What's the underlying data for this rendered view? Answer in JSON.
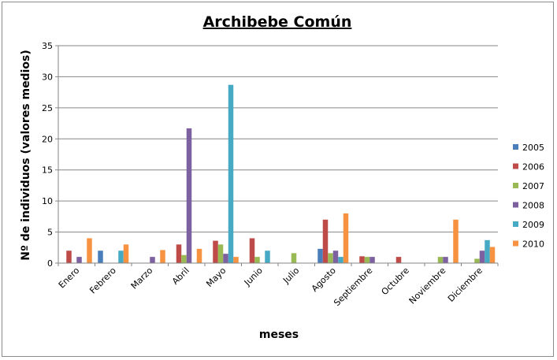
{
  "chart_data": {
    "type": "bar",
    "title": "Archibebe Común",
    "xlabel": "meses",
    "ylabel": "Nº de individuos (valores medios)",
    "ylim": [
      0,
      35
    ],
    "yticks": [
      0,
      5,
      10,
      15,
      20,
      25,
      30,
      35
    ],
    "grid": true,
    "legend_position": "right",
    "categories": [
      "Enero",
      "Febrero",
      "Marzo",
      "Abril",
      "Mayo",
      "Junio",
      "Julio",
      "Agosto",
      "Septiembre",
      "Octubre",
      "Noviembre",
      "Diciembre"
    ],
    "series": [
      {
        "name": "2005",
        "color": "#4a7ebb",
        "values": [
          0,
          2,
          0,
          0,
          0,
          0,
          0,
          2.3,
          0,
          0,
          0,
          0
        ]
      },
      {
        "name": "2006",
        "color": "#be4b48",
        "values": [
          2,
          0,
          0,
          3,
          3.6,
          4,
          0,
          7,
          1.1,
          1,
          0,
          0
        ]
      },
      {
        "name": "2007",
        "color": "#98b954",
        "values": [
          0,
          0,
          0,
          1.3,
          3,
          1,
          1.6,
          1.6,
          1,
          0,
          1,
          0.7
        ]
      },
      {
        "name": "2008",
        "color": "#7d60a0",
        "values": [
          1,
          0,
          1,
          21.7,
          1.5,
          0,
          0,
          2,
          1,
          0,
          1,
          2
        ]
      },
      {
        "name": "2009",
        "color": "#46aac5",
        "values": [
          0,
          2,
          0,
          0,
          28.7,
          2,
          0,
          1,
          0,
          0,
          0,
          3.7
        ]
      },
      {
        "name": "2010",
        "color": "#f69240",
        "values": [
          4,
          3,
          2.1,
          2.3,
          1,
          0,
          0,
          8,
          0,
          0,
          7,
          2.6
        ]
      }
    ]
  }
}
